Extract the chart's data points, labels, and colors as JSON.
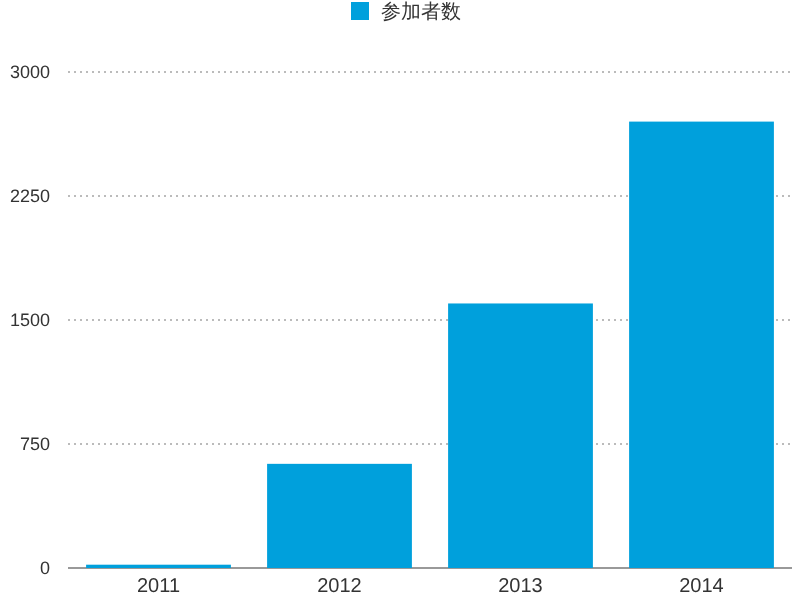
{
  "chart_data": {
    "type": "bar",
    "categories": [
      "2011",
      "2012",
      "2013",
      "2014"
    ],
    "series": [
      {
        "name": "参加者数",
        "color": "#00a0dc",
        "values": [
          20,
          630,
          1600,
          2700
        ]
      }
    ],
    "ylim": [
      0,
      3000
    ],
    "yticks": [
      0,
      750,
      1500,
      2250,
      3000
    ],
    "grid": "y",
    "legend": "top"
  }
}
